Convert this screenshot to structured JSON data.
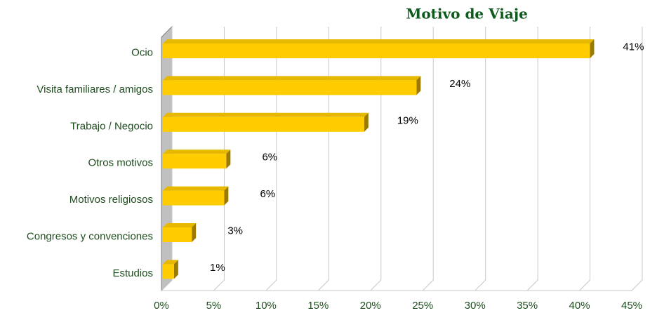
{
  "chart_data": {
    "type": "bar3d_h",
    "title": "Motivo de Viaje",
    "categories": [
      "Ocio",
      "Visita familiares / amigos",
      "Trabajo / Negocio",
      "Otros motivos",
      "Motivos religiosos",
      "Congresos y convenciones",
      "Estudios"
    ],
    "values": [
      41,
      24.4,
      19.4,
      6.2,
      6,
      2.9,
      1.2
    ],
    "value_labels": [
      "41%",
      "24%",
      "19%",
      "6%",
      "6%",
      "3%",
      "1%"
    ],
    "color": "#ffcc00",
    "xlim": [
      0,
      45
    ],
    "xticks": [
      {
        "value": 0,
        "label": "0%"
      },
      {
        "value": 5,
        "label": "5%"
      },
      {
        "value": 10,
        "label": "10%"
      },
      {
        "value": 15,
        "label": "15%"
      },
      {
        "value": 20,
        "label": "20%"
      },
      {
        "value": 25,
        "label": "25%"
      },
      {
        "value": 30,
        "label": "30%"
      },
      {
        "value": 35,
        "label": "35%"
      },
      {
        "value": 40,
        "label": "40%"
      },
      {
        "value": 45,
        "label": "45%"
      }
    ],
    "grid": true
  }
}
